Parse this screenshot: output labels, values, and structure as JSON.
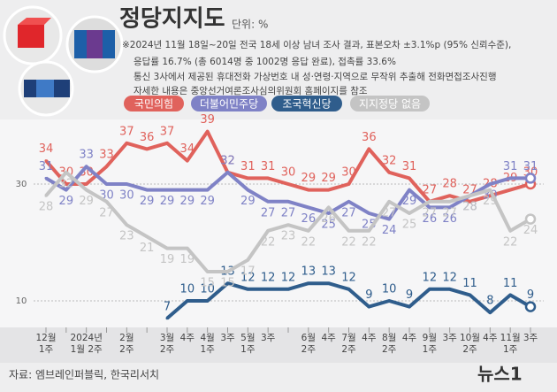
{
  "chart_data": {
    "type": "line",
    "title": "정당지지도",
    "unit": "단위: %",
    "notes": [
      "※2024년 11월 18일~20일 전국 18세 이상 남녀 조사 결과, 표본오차 ±3.1%p (95% 신뢰수준),",
      "응답률 16.7% (총 6014명 중 1002명 응답 완료), 접촉률 33.6%",
      "통신 3사에서 제공된 휴대전화 가상번호 내 성·연령·지역으로 무작위 추출해 전화면접조사진행",
      "자세한 내용은 중앙선거여론조사심의위원회 홈페이지를 참조"
    ],
    "source": "자료: 엠브레인퍼블릭, 한국리서치",
    "brand": "뉴스1",
    "categories": [
      "12월\n1주",
      null,
      "2024년\n1월 2주",
      null,
      "2월\n2주",
      null,
      "3월\n2주",
      "4주",
      "4월\n1주",
      "3주",
      "5월\n1주",
      "3주",
      null,
      "6월\n2주",
      "4주",
      "7월\n2주",
      "4주",
      "8월\n2주",
      "4주",
      "9월\n1주",
      "3주",
      "10월\n2주",
      "4주",
      "11월\n1주",
      "3주"
    ],
    "series": [
      {
        "name": "국민의힘",
        "color": "#e0625c",
        "values": [
          34,
          30,
          30,
          33,
          37,
          36,
          37,
          34,
          39,
          32,
          31,
          31,
          30,
          29,
          29,
          30,
          36,
          32,
          31,
          27,
          28,
          27,
          28,
          29,
          30
        ]
      },
      {
        "name": "더불어민주당",
        "color": "#7f82c6",
        "values": [
          31,
          29,
          33,
          30,
          30,
          29,
          29,
          29,
          29,
          32,
          29,
          27,
          27,
          26,
          25,
          27,
          25,
          24,
          29,
          26,
          26,
          28,
          30,
          31,
          31
        ]
      },
      {
        "name": "조국혁신당",
        "color": "#2f5d8c",
        "values": [
          null,
          null,
          null,
          null,
          null,
          null,
          7,
          10,
          10,
          13,
          12,
          12,
          12,
          13,
          13,
          12,
          9,
          10,
          9,
          12,
          12,
          11,
          8,
          11,
          9
        ]
      },
      {
        "name": "지지정당 없음",
        "color": "#c4c4c4",
        "values": [
          28,
          32,
          29,
          27,
          23,
          21,
          19,
          19,
          15,
          15,
          17,
          22,
          23,
          22,
          26,
          22,
          22,
          27,
          25,
          27,
          27,
          28,
          29,
          22,
          24
        ]
      }
    ],
    "ylim": [
      5,
      40
    ],
    "yticks": [
      10,
      30
    ],
    "grid": true
  }
}
